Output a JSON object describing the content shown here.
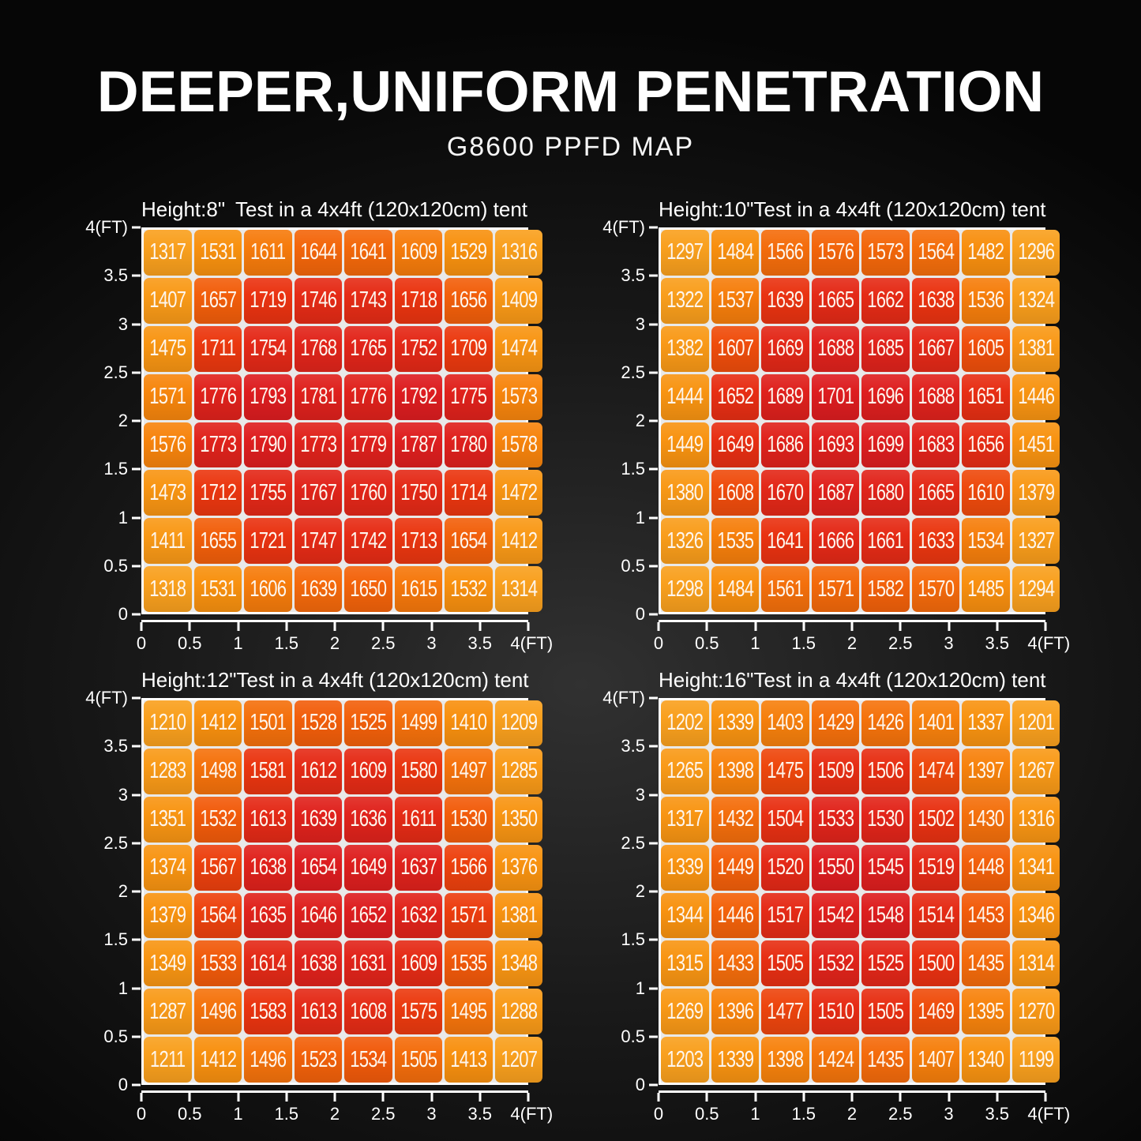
{
  "title": "DEEPER,UNIFORM PENETRATION",
  "subtitle": "G8600 PPFD MAP",
  "axes": {
    "y_labels": [
      "4(FT)",
      "3.5",
      "3",
      "2.5",
      "2",
      "1.5",
      "1",
      "0.5",
      "0"
    ],
    "x_labels": [
      "0",
      "0.5",
      "1",
      "1.5",
      "2",
      "2.5",
      "3",
      "3.5",
      "4(FT)"
    ]
  },
  "color_scale": {
    "description": "per-grid normalized orange-to-red heatmap ramp",
    "stops": [
      {
        "t": 0.0,
        "color": "#F9A01E"
      },
      {
        "t": 0.45,
        "color": "#F8910F"
      },
      {
        "t": 0.62,
        "color": "#F67B0C"
      },
      {
        "t": 0.74,
        "color": "#F1570B"
      },
      {
        "t": 0.84,
        "color": "#EA3410"
      },
      {
        "t": 1.0,
        "color": "#DD1D20"
      }
    ]
  },
  "chart_data": [
    {
      "type": "heatmap",
      "height_label": "Height:8\"",
      "tent_label": "Test in a 4x4ft (120x120cm) tent",
      "x_range_ft": [
        0,
        4
      ],
      "y_range_ft": [
        0,
        4
      ],
      "grid_size": [
        8,
        8
      ],
      "values": [
        [
          1317,
          1531,
          1611,
          1644,
          1641,
          1609,
          1529,
          1316
        ],
        [
          1407,
          1657,
          1719,
          1746,
          1743,
          1718,
          1656,
          1409
        ],
        [
          1475,
          1711,
          1754,
          1768,
          1765,
          1752,
          1709,
          1474
        ],
        [
          1571,
          1776,
          1793,
          1781,
          1776,
          1792,
          1775,
          1573
        ],
        [
          1576,
          1773,
          1790,
          1773,
          1779,
          1787,
          1780,
          1578
        ],
        [
          1473,
          1712,
          1755,
          1767,
          1760,
          1750,
          1714,
          1472
        ],
        [
          1411,
          1655,
          1721,
          1747,
          1742,
          1713,
          1654,
          1412
        ],
        [
          1318,
          1531,
          1606,
          1639,
          1650,
          1615,
          1532,
          1314
        ]
      ]
    },
    {
      "type": "heatmap",
      "height_label": "Height:10\"",
      "tent_label": "Test in a 4x4ft (120x120cm) tent",
      "x_range_ft": [
        0,
        4
      ],
      "y_range_ft": [
        0,
        4
      ],
      "grid_size": [
        8,
        8
      ],
      "values": [
        [
          1297,
          1484,
          1566,
          1576,
          1573,
          1564,
          1482,
          1296
        ],
        [
          1322,
          1537,
          1639,
          1665,
          1662,
          1638,
          1536,
          1324
        ],
        [
          1382,
          1607,
          1669,
          1688,
          1685,
          1667,
          1605,
          1381
        ],
        [
          1444,
          1652,
          1689,
          1701,
          1696,
          1688,
          1651,
          1446
        ],
        [
          1449,
          1649,
          1686,
          1693,
          1699,
          1683,
          1656,
          1451
        ],
        [
          1380,
          1608,
          1670,
          1687,
          1680,
          1665,
          1610,
          1379
        ],
        [
          1326,
          1535,
          1641,
          1666,
          1661,
          1633,
          1534,
          1327
        ],
        [
          1298,
          1484,
          1561,
          1571,
          1582,
          1570,
          1485,
          1294
        ]
      ]
    },
    {
      "type": "heatmap",
      "height_label": "Height:12\"",
      "tent_label": "Test in a 4x4ft (120x120cm) tent",
      "x_range_ft": [
        0,
        4
      ],
      "y_range_ft": [
        0,
        4
      ],
      "grid_size": [
        8,
        8
      ],
      "values": [
        [
          1210,
          1412,
          1501,
          1528,
          1525,
          1499,
          1410,
          1209
        ],
        [
          1283,
          1498,
          1581,
          1612,
          1609,
          1580,
          1497,
          1285
        ],
        [
          1351,
          1532,
          1613,
          1639,
          1636,
          1611,
          1530,
          1350
        ],
        [
          1374,
          1567,
          1638,
          1654,
          1649,
          1637,
          1566,
          1376
        ],
        [
          1379,
          1564,
          1635,
          1646,
          1652,
          1632,
          1571,
          1381
        ],
        [
          1349,
          1533,
          1614,
          1638,
          1631,
          1609,
          1535,
          1348
        ],
        [
          1287,
          1496,
          1583,
          1613,
          1608,
          1575,
          1495,
          1288
        ],
        [
          1211,
          1412,
          1496,
          1523,
          1534,
          1505,
          1413,
          1207
        ]
      ]
    },
    {
      "type": "heatmap",
      "height_label": "Height:16\"",
      "tent_label": "Test in a 4x4ft (120x120cm) tent",
      "x_range_ft": [
        0,
        4
      ],
      "y_range_ft": [
        0,
        4
      ],
      "grid_size": [
        8,
        8
      ],
      "values": [
        [
          1202,
          1339,
          1403,
          1429,
          1426,
          1401,
          1337,
          1201
        ],
        [
          1265,
          1398,
          1475,
          1509,
          1506,
          1474,
          1397,
          1267
        ],
        [
          1317,
          1432,
          1504,
          1533,
          1530,
          1502,
          1430,
          1316
        ],
        [
          1339,
          1449,
          1520,
          1550,
          1545,
          1519,
          1448,
          1341
        ],
        [
          1344,
          1446,
          1517,
          1542,
          1548,
          1514,
          1453,
          1346
        ],
        [
          1315,
          1433,
          1505,
          1532,
          1525,
          1500,
          1435,
          1314
        ],
        [
          1269,
          1396,
          1477,
          1510,
          1505,
          1469,
          1395,
          1270
        ],
        [
          1203,
          1339,
          1398,
          1424,
          1435,
          1407,
          1340,
          1199
        ]
      ]
    }
  ]
}
